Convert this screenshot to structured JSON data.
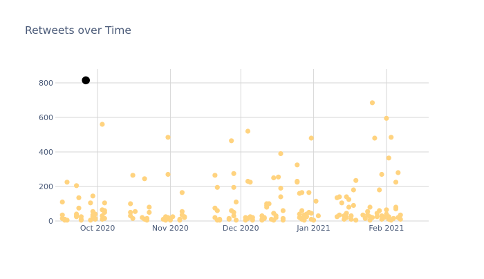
{
  "chart_data": {
    "type": "scatter",
    "title": "Retweets over Time",
    "xlabel": "",
    "ylabel": "",
    "xlim": [
      "2020-09-13",
      "2021-02-19"
    ],
    "ylim": [
      0,
      880
    ],
    "yticks": [
      0,
      200,
      400,
      600,
      800
    ],
    "xticks": [
      {
        "date": "2020-10-01",
        "label": "Oct 2020"
      },
      {
        "date": "2020-11-01",
        "label": "Nov 2020"
      },
      {
        "date": "2020-12-01",
        "label": "Dec 2020"
      },
      {
        "date": "2021-01-01",
        "label": "Jan 2021"
      },
      {
        "date": "2021-02-01",
        "label": "Feb 2021"
      }
    ],
    "grid": true,
    "colors": {
      "points": "#ffd37f",
      "highlight": "#000000",
      "grid": "#d6d6d6",
      "text": "#4a5a78"
    },
    "series": [
      {
        "points": [
          [
            "2020-09-16",
            110
          ],
          [
            "2020-09-16",
            35
          ],
          [
            "2020-09-16",
            15
          ],
          [
            "2020-09-17",
            5
          ],
          [
            "2020-09-17",
            10
          ],
          [
            "2020-09-18",
            225
          ],
          [
            "2020-09-18",
            5
          ],
          [
            "2020-09-22",
            40
          ],
          [
            "2020-09-22",
            30
          ],
          [
            "2020-09-22",
            25
          ],
          [
            "2020-09-22",
            205
          ],
          [
            "2020-09-23",
            135
          ],
          [
            "2020-09-23",
            75
          ],
          [
            "2020-09-24",
            25
          ],
          [
            "2020-09-24",
            10
          ],
          [
            "2020-09-24",
            5
          ],
          [
            "2020-09-28",
            105
          ],
          [
            "2020-09-28",
            5
          ],
          [
            "2020-09-29",
            145
          ],
          [
            "2020-09-29",
            55
          ],
          [
            "2020-09-29",
            35
          ],
          [
            "2020-09-29",
            25
          ],
          [
            "2020-09-30",
            15
          ],
          [
            "2020-09-30",
            40
          ],
          [
            "2020-09-30",
            10
          ],
          [
            "2020-10-03",
            65
          ],
          [
            "2020-10-03",
            30
          ],
          [
            "2020-10-03",
            10
          ],
          [
            "2020-10-03",
            560
          ],
          [
            "2020-10-04",
            60
          ],
          [
            "2020-10-04",
            50
          ],
          [
            "2020-10-04",
            105
          ],
          [
            "2020-10-04",
            15
          ],
          [
            "2020-10-15",
            100
          ],
          [
            "2020-10-15",
            50
          ],
          [
            "2020-10-15",
            30
          ],
          [
            "2020-10-16",
            15
          ],
          [
            "2020-10-16",
            265
          ],
          [
            "2020-10-17",
            55
          ],
          [
            "2020-10-20",
            20
          ],
          [
            "2020-10-21",
            245
          ],
          [
            "2020-10-21",
            10
          ],
          [
            "2020-10-22",
            5
          ],
          [
            "2020-10-22",
            15
          ],
          [
            "2020-10-23",
            50
          ],
          [
            "2020-10-23",
            80
          ],
          [
            "2020-10-29",
            10
          ],
          [
            "2020-10-30",
            5
          ],
          [
            "2020-10-30",
            25
          ],
          [
            "2020-10-31",
            20
          ],
          [
            "2020-10-31",
            485
          ],
          [
            "2020-10-31",
            270
          ],
          [
            "2020-11-01",
            15
          ],
          [
            "2020-11-01",
            5
          ],
          [
            "2020-11-02",
            25
          ],
          [
            "2020-11-05",
            10
          ],
          [
            "2020-11-05",
            5
          ],
          [
            "2020-11-06",
            165
          ],
          [
            "2020-11-06",
            55
          ],
          [
            "2020-11-06",
            35
          ],
          [
            "2020-11-07",
            20
          ],
          [
            "2020-11-07",
            25
          ],
          [
            "2020-11-20",
            265
          ],
          [
            "2020-11-20",
            20
          ],
          [
            "2020-11-20",
            75
          ],
          [
            "2020-11-21",
            195
          ],
          [
            "2020-11-21",
            60
          ],
          [
            "2020-11-21",
            5
          ],
          [
            "2020-11-22",
            10
          ],
          [
            "2020-11-22",
            5
          ],
          [
            "2020-11-26",
            10
          ],
          [
            "2020-11-26",
            15
          ],
          [
            "2020-11-27",
            465
          ],
          [
            "2020-11-27",
            60
          ],
          [
            "2020-11-28",
            30
          ],
          [
            "2020-11-28",
            275
          ],
          [
            "2020-11-28",
            195
          ],
          [
            "2020-11-28",
            50
          ],
          [
            "2020-11-29",
            110
          ],
          [
            "2020-11-29",
            5
          ],
          [
            "2020-12-03",
            5
          ],
          [
            "2020-12-03",
            20
          ],
          [
            "2020-12-04",
            15
          ],
          [
            "2020-12-04",
            520
          ],
          [
            "2020-12-04",
            230
          ],
          [
            "2020-12-05",
            225
          ],
          [
            "2020-12-05",
            25
          ],
          [
            "2020-12-06",
            20
          ],
          [
            "2020-12-06",
            5
          ],
          [
            "2020-12-10",
            5
          ],
          [
            "2020-12-10",
            10
          ],
          [
            "2020-12-10",
            30
          ],
          [
            "2020-12-11",
            20
          ],
          [
            "2020-12-11",
            15
          ],
          [
            "2020-12-12",
            100
          ],
          [
            "2020-12-12",
            90
          ],
          [
            "2020-12-12",
            80
          ],
          [
            "2020-12-13",
            100
          ],
          [
            "2020-12-14",
            10
          ],
          [
            "2020-12-15",
            250
          ],
          [
            "2020-12-15",
            5
          ],
          [
            "2020-12-15",
            45
          ],
          [
            "2020-12-16",
            30
          ],
          [
            "2020-12-16",
            20
          ],
          [
            "2020-12-17",
            255
          ],
          [
            "2020-12-18",
            140
          ],
          [
            "2020-12-18",
            190
          ],
          [
            "2020-12-18",
            390
          ],
          [
            "2020-12-19",
            60
          ],
          [
            "2020-12-19",
            15
          ],
          [
            "2020-12-19",
            5
          ],
          [
            "2020-12-25",
            325
          ],
          [
            "2020-12-25",
            230
          ],
          [
            "2020-12-25",
            225
          ],
          [
            "2020-12-26",
            160
          ],
          [
            "2020-12-26",
            40
          ],
          [
            "2020-12-26",
            20
          ],
          [
            "2020-12-27",
            165
          ],
          [
            "2020-12-27",
            60
          ],
          [
            "2020-12-27",
            15
          ],
          [
            "2020-12-27",
            10
          ],
          [
            "2020-12-28",
            35
          ],
          [
            "2020-12-28",
            5
          ],
          [
            "2020-12-28",
            20
          ],
          [
            "2020-12-29",
            40
          ],
          [
            "2020-12-29",
            25
          ],
          [
            "2020-12-30",
            165
          ],
          [
            "2020-12-30",
            50
          ],
          [
            "2020-12-31",
            480
          ],
          [
            "2020-12-31",
            45
          ],
          [
            "2020-12-31",
            10
          ],
          [
            "2021-01-01",
            5
          ],
          [
            "2021-01-02",
            115
          ],
          [
            "2021-01-03",
            30
          ],
          [
            "2021-01-11",
            135
          ],
          [
            "2021-01-11",
            25
          ],
          [
            "2021-01-12",
            140
          ],
          [
            "2021-01-12",
            35
          ],
          [
            "2021-01-13",
            105
          ],
          [
            "2021-01-14",
            30
          ],
          [
            "2021-01-14",
            10
          ],
          [
            "2021-01-15",
            45
          ],
          [
            "2021-01-15",
            140
          ],
          [
            "2021-01-15",
            20
          ],
          [
            "2021-01-16",
            125
          ],
          [
            "2021-01-16",
            80
          ],
          [
            "2021-01-17",
            30
          ],
          [
            "2021-01-17",
            10
          ],
          [
            "2021-01-18",
            180
          ],
          [
            "2021-01-18",
            90
          ],
          [
            "2021-01-19",
            235
          ],
          [
            "2021-01-19",
            5
          ],
          [
            "2021-01-22",
            35
          ],
          [
            "2021-01-23",
            15
          ],
          [
            "2021-01-24",
            55
          ],
          [
            "2021-01-24",
            35
          ],
          [
            "2021-01-25",
            80
          ],
          [
            "2021-01-25",
            25
          ],
          [
            "2021-01-25",
            5
          ],
          [
            "2021-01-26",
            685
          ],
          [
            "2021-01-26",
            20
          ],
          [
            "2021-01-27",
            480
          ],
          [
            "2021-01-28",
            25
          ],
          [
            "2021-01-28",
            45
          ],
          [
            "2021-01-29",
            180
          ],
          [
            "2021-01-29",
            60
          ],
          [
            "2021-01-30",
            270
          ],
          [
            "2021-01-30",
            30
          ],
          [
            "2021-01-30",
            10
          ],
          [
            "2021-01-31",
            20
          ],
          [
            "2021-02-01",
            595
          ],
          [
            "2021-02-01",
            65
          ],
          [
            "2021-02-01",
            40
          ],
          [
            "2021-02-02",
            365
          ],
          [
            "2021-02-02",
            10
          ],
          [
            "2021-02-02",
            25
          ],
          [
            "2021-02-03",
            485
          ],
          [
            "2021-02-03",
            5
          ],
          [
            "2021-02-04",
            15
          ],
          [
            "2021-02-05",
            225
          ],
          [
            "2021-02-05",
            80
          ],
          [
            "2021-02-05",
            70
          ],
          [
            "2021-02-06",
            280
          ],
          [
            "2021-02-06",
            20
          ],
          [
            "2021-02-07",
            35
          ],
          [
            "2021-02-07",
            10
          ]
        ]
      }
    ],
    "highlight": [
      [
        "2020-09-26",
        815
      ]
    ]
  }
}
